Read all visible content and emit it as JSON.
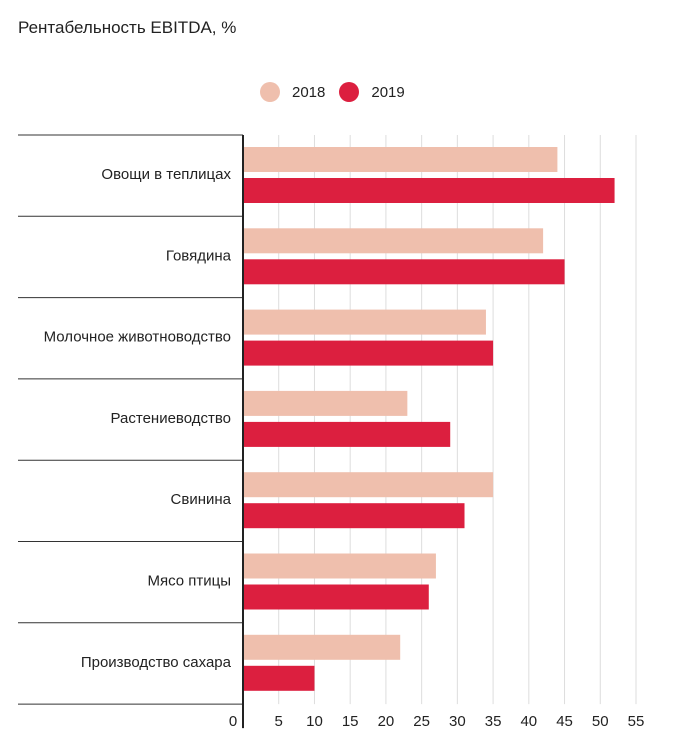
{
  "colors": {
    "s2018": "#efbfad",
    "s2019": "#dc1f3f",
    "grid": "#dddddd",
    "sep": "#333333",
    "axis": "#222222"
  },
  "chart_data": {
    "type": "bar",
    "orientation": "horizontal",
    "title": "Рентабельность EBITDA, %",
    "categories": [
      "Овощи в теплицах",
      "Говядина",
      "Молочное животноводство",
      "Растениеводство",
      "Свинина",
      "Мясо птицы",
      "Производство сахара"
    ],
    "series": [
      {
        "name": "2018",
        "values": [
          44,
          42,
          34,
          23,
          35,
          27,
          22
        ]
      },
      {
        "name": "2019",
        "values": [
          52,
          45,
          35,
          29,
          31,
          26,
          10
        ]
      }
    ],
    "xlim": [
      0,
      55
    ],
    "xticks": [
      0,
      5,
      10,
      15,
      20,
      25,
      30,
      35,
      40,
      45,
      50,
      55
    ],
    "xlabel": "",
    "ylabel": "",
    "legend": "top"
  }
}
